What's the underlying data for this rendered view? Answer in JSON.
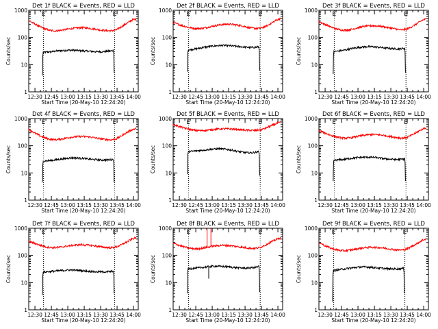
{
  "figure": {
    "colors": {
      "events": "#000000",
      "lld": "#ff0000",
      "axis": "#000000",
      "background": "#ffffff"
    },
    "shared": {
      "x_tick_labels": [
        "12:30",
        "12:45",
        "13:00",
        "13:15",
        "13:30",
        "13:45",
        "14:00"
      ],
      "y_tick_labels": [
        "1",
        "10",
        "100",
        "1000"
      ],
      "y_axis_label": "Counts/sec",
      "x_axis_label": "Start Time (20-May-10 12:24:20)",
      "marker_start": "E",
      "marker_end": "E"
    }
  },
  "chart_data": [
    {
      "type": "line",
      "title": "Det 1f BLACK = Events, RED = LLD",
      "xlabel": "Start Time (20-May-10 12:24:20)",
      "ylabel": "Counts/sec",
      "y_scale": "log",
      "ylim": [
        1,
        1000
      ],
      "x_unit": "minutes after 12:24:20",
      "xlim": [
        0,
        100
      ],
      "vlines": [
        13.5,
        78.5
      ],
      "series": [
        {
          "name": "Events",
          "x": [
            12.5,
            13,
            16,
            21,
            26,
            31,
            36,
            41,
            46,
            51,
            56,
            61,
            66,
            71,
            76,
            77.5,
            78
          ],
          "y": [
            4,
            28,
            29,
            30,
            32,
            33,
            34,
            34,
            33,
            32,
            31,
            30,
            30,
            31,
            32,
            34,
            5
          ]
        },
        {
          "name": "LLD",
          "x": [
            0,
            5,
            10,
            15,
            20,
            25,
            30,
            35,
            40,
            45,
            50,
            55,
            60,
            65,
            70,
            75,
            80,
            85,
            90,
            95,
            98
          ],
          "y": [
            420,
            320,
            250,
            205,
            180,
            175,
            185,
            200,
            215,
            225,
            230,
            220,
            205,
            190,
            180,
            175,
            190,
            250,
            340,
            450,
            480
          ]
        }
      ]
    },
    {
      "type": "line",
      "title": "Det 2f BLACK = Events, RED = LLD",
      "xlabel": "Start Time (20-May-10 12:24:20)",
      "ylabel": "Counts/sec",
      "y_scale": "log",
      "ylim": [
        1,
        1000
      ],
      "x_unit": "minutes after 12:24:20",
      "xlim": [
        0,
        100
      ],
      "vlines": [
        14,
        79.5
      ],
      "series": [
        {
          "name": "Events",
          "x": [
            13,
            13.5,
            16,
            21,
            26,
            31,
            36,
            41,
            46,
            51,
            56,
            61,
            66,
            71,
            76,
            78.5,
            79
          ],
          "y": [
            5.5,
            34,
            36,
            38,
            42,
            45,
            48,
            50,
            51,
            50,
            48,
            46,
            44,
            43,
            44,
            45,
            6
          ]
        },
        {
          "name": "LLD",
          "x": [
            0,
            5,
            10,
            15,
            20,
            25,
            30,
            35,
            40,
            45,
            50,
            55,
            60,
            65,
            70,
            75,
            80,
            85,
            90,
            95,
            98
          ],
          "y": [
            350,
            300,
            260,
            230,
            215,
            215,
            230,
            255,
            280,
            300,
            310,
            300,
            280,
            255,
            230,
            215,
            220,
            260,
            340,
            450,
            500
          ]
        }
      ]
    },
    {
      "type": "line",
      "title": "Det 3f BLACK = Events, RED = LLD",
      "xlabel": "Start Time (20-May-10 12:24:20)",
      "ylabel": "Counts/sec",
      "y_scale": "log",
      "ylim": [
        1,
        1000
      ],
      "x_unit": "minutes after 12:24:20",
      "xlim": [
        0,
        100
      ],
      "vlines": [
        14,
        79.5
      ],
      "series": [
        {
          "name": "Events",
          "x": [
            13,
            13.5,
            16,
            21,
            26,
            31,
            36,
            41,
            46,
            51,
            56,
            61,
            66,
            71,
            76,
            78.5,
            79
          ],
          "y": [
            4.5,
            30,
            31,
            33,
            36,
            40,
            43,
            45,
            46,
            45,
            43,
            41,
            39,
            38,
            39,
            40,
            5
          ]
        },
        {
          "name": "LLD",
          "x": [
            0,
            5,
            10,
            15,
            20,
            25,
            30,
            35,
            40,
            45,
            50,
            55,
            60,
            65,
            70,
            75,
            80,
            85,
            90,
            95,
            98
          ],
          "y": [
            380,
            310,
            250,
            210,
            190,
            185,
            200,
            225,
            250,
            265,
            270,
            262,
            245,
            225,
            205,
            190,
            200,
            250,
            330,
            440,
            480
          ]
        }
      ]
    },
    {
      "type": "line",
      "title": "Det 4f BLACK = Events, RED = LLD",
      "xlabel": "Start Time (20-May-10 12:24:20)",
      "ylabel": "Counts/sec",
      "y_scale": "log",
      "ylim": [
        1,
        1000
      ],
      "x_unit": "minutes after 12:24:20",
      "xlim": [
        0,
        100
      ],
      "vlines": [
        13.5,
        78.5
      ],
      "series": [
        {
          "name": "Events",
          "x": [
            12.5,
            13,
            16,
            21,
            26,
            31,
            36,
            41,
            46,
            51,
            56,
            61,
            66,
            71,
            76,
            77.5,
            78
          ],
          "y": [
            4.5,
            27,
            28,
            29,
            31,
            33,
            35,
            36,
            35,
            34,
            32,
            31,
            30,
            30,
            31,
            32,
            4.5
          ]
        },
        {
          "name": "LLD",
          "x": [
            0,
            5,
            10,
            15,
            20,
            25,
            30,
            35,
            40,
            45,
            50,
            55,
            60,
            65,
            70,
            75,
            80,
            85,
            90,
            95,
            98
          ],
          "y": [
            400,
            300,
            235,
            195,
            170,
            168,
            178,
            195,
            210,
            218,
            220,
            212,
            198,
            182,
            170,
            165,
            180,
            235,
            315,
            400,
            430
          ]
        }
      ]
    },
    {
      "type": "line",
      "title": "Det 5f BLACK = Events, RED = LLD",
      "xlabel": "Start Time (20-May-10 12:24:20)",
      "ylabel": "Counts/sec",
      "y_scale": "log",
      "ylim": [
        1,
        1000
      ],
      "x_unit": "minutes after 12:24:20",
      "xlim": [
        0,
        100
      ],
      "vlines": [
        14,
        79.5
      ],
      "series": [
        {
          "name": "Events",
          "x": [
            13,
            13.5,
            16,
            21,
            26,
            31,
            36,
            41,
            46,
            51,
            56,
            61,
            66,
            71,
            76,
            78.5,
            79
          ],
          "y": [
            9,
            60,
            62,
            65,
            68,
            72,
            75,
            77,
            76,
            72,
            66,
            60,
            56,
            55,
            58,
            62,
            8
          ]
        },
        {
          "name": "LLD",
          "x": [
            0,
            5,
            10,
            15,
            20,
            25,
            30,
            35,
            40,
            45,
            50,
            55,
            60,
            65,
            70,
            75,
            80,
            85,
            90,
            95,
            98
          ],
          "y": [
            600,
            520,
            450,
            400,
            370,
            360,
            370,
            390,
            410,
            420,
            420,
            410,
            395,
            380,
            370,
            365,
            385,
            450,
            550,
            680,
            720
          ]
        }
      ]
    },
    {
      "type": "line",
      "title": "Det 6f BLACK = Events, RED = LLD",
      "xlabel": "Start Time (20-May-10 12:24:20)",
      "ylabel": "Counts/sec",
      "y_scale": "log",
      "ylim": [
        1,
        1000
      ],
      "x_unit": "minutes after 12:24:20",
      "xlim": [
        0,
        100
      ],
      "vlines": [
        14,
        79.5
      ],
      "series": [
        {
          "name": "Events",
          "x": [
            13,
            13.5,
            16,
            21,
            26,
            31,
            36,
            41,
            46,
            51,
            56,
            61,
            66,
            71,
            76,
            78.5,
            79
          ],
          "y": [
            5,
            29,
            30,
            31,
            33,
            35,
            37,
            38,
            38,
            37,
            35,
            33,
            32,
            31,
            32,
            33,
            5
          ]
        },
        {
          "name": "LLD",
          "x": [
            0,
            5,
            10,
            15,
            20,
            25,
            30,
            35,
            40,
            45,
            50,
            55,
            60,
            65,
            70,
            75,
            80,
            85,
            90,
            95,
            98
          ],
          "y": [
            360,
            300,
            250,
            215,
            195,
            190,
            200,
            220,
            240,
            255,
            260,
            252,
            238,
            220,
            205,
            192,
            200,
            245,
            320,
            420,
            460
          ]
        }
      ]
    },
    {
      "type": "line",
      "title": "Det 7f BLACK = Events, RED = LLD",
      "xlabel": "Start Time (20-May-10 12:24:20)",
      "ylabel": "Counts/sec",
      "y_scale": "log",
      "ylim": [
        1,
        1000
      ],
      "x_unit": "minutes after 12:24:20",
      "xlim": [
        0,
        100
      ],
      "vlines": [
        13.5,
        78.5
      ],
      "series": [
        {
          "name": "Events",
          "x": [
            12.5,
            13,
            16,
            21,
            26,
            31,
            36,
            41,
            46,
            51,
            56,
            61,
            66,
            71,
            76,
            77.5,
            78
          ],
          "y": [
            3.5,
            24,
            25,
            26,
            27,
            28,
            29,
            29,
            28,
            27,
            26,
            25,
            25,
            25,
            26,
            27,
            4
          ]
        },
        {
          "name": "LLD",
          "x": [
            0,
            5,
            10,
            15,
            20,
            25,
            30,
            35,
            40,
            45,
            50,
            55,
            60,
            65,
            70,
            75,
            80,
            85,
            90,
            95,
            98
          ],
          "y": [
            330,
            280,
            240,
            210,
            195,
            195,
            205,
            220,
            235,
            245,
            245,
            238,
            225,
            210,
            198,
            192,
            205,
            250,
            320,
            410,
            450
          ]
        }
      ]
    },
    {
      "type": "line",
      "title": "Det 8f BLACK = Events, RED = LLD",
      "xlabel": "Start Time (20-May-10 12:24:20)",
      "ylabel": "Counts/sec",
      "y_scale": "log",
      "ylim": [
        1,
        1000
      ],
      "x_unit": "minutes after 12:24:20",
      "xlim": [
        0,
        100
      ],
      "vlines": [
        14,
        79.5
      ],
      "series": [
        {
          "name": "Events",
          "x": [
            13,
            13.5,
            16,
            21,
            26,
            31,
            36,
            41,
            46,
            51,
            56,
            61,
            66,
            71,
            76,
            78.5,
            79
          ],
          "y": [
            4,
            32,
            33,
            34,
            36,
            38,
            40,
            40,
            39,
            38,
            36,
            35,
            34,
            35,
            37,
            40,
            4.5
          ]
        },
        {
          "name": "LLD",
          "x": [
            0,
            5,
            10,
            15,
            20,
            25,
            30,
            35,
            40,
            45,
            50,
            55,
            60,
            65,
            70,
            75,
            80,
            85,
            90,
            95,
            98
          ],
          "y": [
            280,
            240,
            205,
            185,
            175,
            180,
            195,
            215,
            230,
            235,
            232,
            222,
            208,
            195,
            185,
            182,
            200,
            250,
            320,
            400,
            440
          ]
        }
      ],
      "spikes": [
        {
          "series": "LLD",
          "x": 31,
          "y": 1000
        },
        {
          "series": "LLD",
          "x": 34.5,
          "y": 1000
        },
        {
          "series": "Events",
          "x": 32.5,
          "y": 14
        }
      ]
    },
    {
      "type": "line",
      "title": "Det 9f BLACK = Events, RED = LLD",
      "xlabel": "Start Time (20-May-10 12:24:20)",
      "ylabel": "Counts/sec",
      "y_scale": "log",
      "ylim": [
        1,
        1000
      ],
      "x_unit": "minutes after 12:24:20",
      "xlim": [
        0,
        100
      ],
      "vlines": [
        13.5,
        78.5
      ],
      "series": [
        {
          "name": "Events",
          "x": [
            12.5,
            13,
            16,
            21,
            26,
            31,
            36,
            41,
            46,
            51,
            56,
            61,
            66,
            71,
            76,
            77.5,
            78
          ],
          "y": [
            2,
            28,
            29,
            31,
            33,
            35,
            37,
            38,
            37,
            36,
            34,
            33,
            32,
            32,
            33,
            34,
            4
          ]
        },
        {
          "name": "LLD",
          "x": [
            0,
            5,
            10,
            15,
            20,
            25,
            30,
            35,
            40,
            45,
            50,
            55,
            60,
            65,
            70,
            75,
            80,
            85,
            90,
            95,
            98
          ],
          "y": [
            300,
            235,
            190,
            165,
            150,
            150,
            160,
            175,
            190,
            198,
            200,
            195,
            185,
            172,
            162,
            158,
            170,
            215,
            280,
            370,
            410
          ]
        }
      ]
    }
  ]
}
